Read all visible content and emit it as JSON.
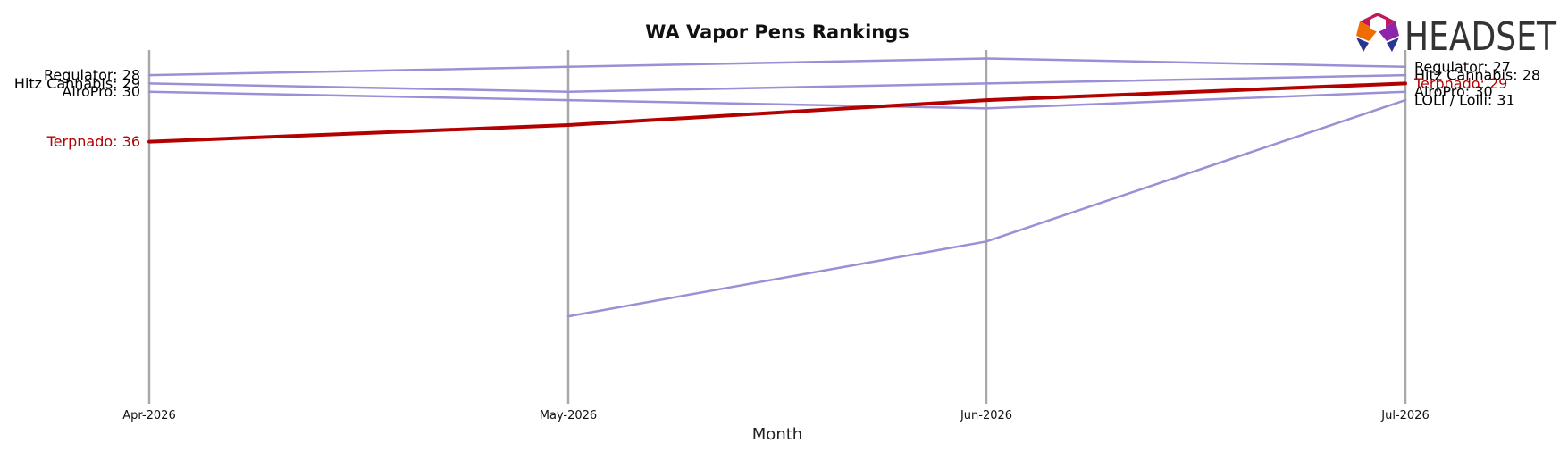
{
  "chart_data": {
    "type": "line",
    "title": "WA Vapor Pens Rankings",
    "xlabel": "Month",
    "ylabel": "",
    "x": [
      "Apr-2026",
      "May-2026",
      "Jun-2026",
      "Jul-2026"
    ],
    "y_inverted": true,
    "ylim": [
      59,
      20
    ],
    "grid": "vertical lines at each month",
    "highlight_color": "#b30000",
    "series_color": "#9b8fd6",
    "series": [
      {
        "name": "Regulator",
        "values": [
          28,
          27,
          26,
          27
        ],
        "start_label": "Regulator: 28",
        "end_label": "Regulator: 27"
      },
      {
        "name": "Hitz Cannabis",
        "values": [
          29,
          30,
          29,
          28
        ],
        "start_label": "Hitz Cannabis: 29",
        "end_label": "Hitz Cannabis: 28"
      },
      {
        "name": "AiroPro",
        "values": [
          30,
          31,
          32,
          30
        ],
        "start_label": "AiroPro: 30",
        "end_label": "AiroPro: 30"
      },
      {
        "name": "Terpnado",
        "values": [
          36,
          34,
          31,
          29
        ],
        "start_label": "Terpnado: 36",
        "end_label": "Terpnado: 29",
        "highlight": true
      },
      {
        "name": "LOLI / Lolli",
        "values": [
          null,
          57,
          48,
          31
        ],
        "start_label": "",
        "end_label": "LOLI / Lolli: 31"
      }
    ]
  },
  "logo": {
    "text": "HEADSET"
  }
}
